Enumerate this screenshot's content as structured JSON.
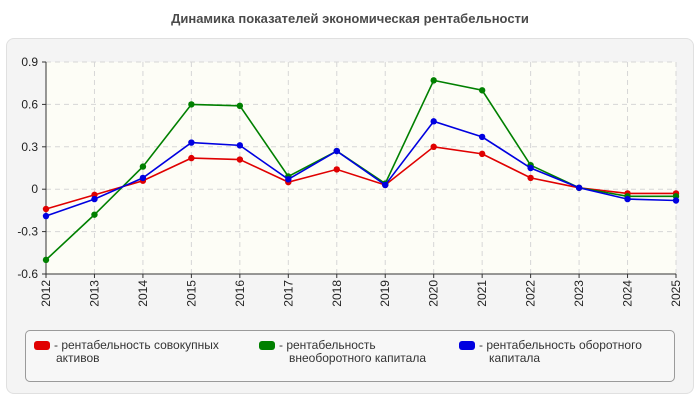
{
  "chart_data": {
    "type": "line",
    "title": "Динамика показателей экономическая рентабельности",
    "xlabel": "",
    "ylabel": "",
    "categories": [
      "2012",
      "2013",
      "2014",
      "2015",
      "2016",
      "2017",
      "2018",
      "2019",
      "2020",
      "2021",
      "2022",
      "2023",
      "2024",
      "2025"
    ],
    "ylim": [
      -0.6,
      0.9
    ],
    "yticks": [
      -0.6,
      -0.3,
      0,
      0.3,
      0.6,
      0.9
    ],
    "ytick_labels": [
      "-0.6",
      "-0.3",
      "0",
      "0.3",
      "0.6",
      "0.9"
    ],
    "grid": true,
    "legend_position": "bottom",
    "series": [
      {
        "name": "- рентабельность совокупных активов",
        "legend_lines": [
          "- рентабельность совокупных",
          "активов"
        ],
        "color": "#e00000",
        "values": [
          -0.14,
          -0.04,
          0.06,
          0.22,
          0.21,
          0.05,
          0.14,
          0.03,
          0.3,
          0.25,
          0.08,
          0.01,
          -0.03,
          -0.03
        ]
      },
      {
        "name": "- рентабельность внеоборотного капитала",
        "legend_lines": [
          "- рентабельность",
          "внеоборотного капитала"
        ],
        "color": "#008000",
        "values": [
          -0.5,
          -0.18,
          0.16,
          0.6,
          0.59,
          0.09,
          0.27,
          0.04,
          0.77,
          0.7,
          0.17,
          0.01,
          -0.05,
          -0.05
        ]
      },
      {
        "name": "- рентабельность оборотного капитала",
        "legend_lines": [
          "- рентабельность оборотного",
          "капитала"
        ],
        "color": "#0000e0",
        "values": [
          -0.19,
          -0.07,
          0.08,
          0.33,
          0.31,
          0.07,
          0.27,
          0.03,
          0.48,
          0.37,
          0.15,
          0.01,
          -0.07,
          -0.08
        ]
      }
    ]
  }
}
